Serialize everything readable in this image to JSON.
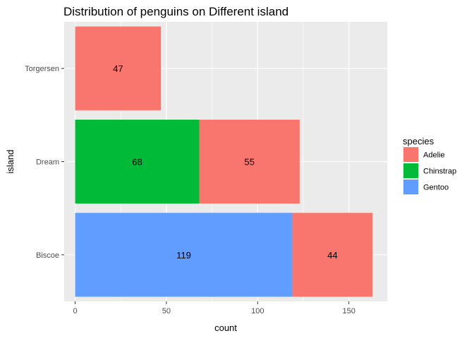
{
  "chart_data": {
    "type": "bar",
    "orientation": "horizontal",
    "stacked": true,
    "title": "Distribution of penguins on Different island",
    "xlabel": "count",
    "ylabel": "island",
    "xlim": [
      -6,
      171
    ],
    "xticks": [
      0,
      50,
      100,
      150
    ],
    "categories": [
      "Biscoe",
      "Dream",
      "Torgersen"
    ],
    "series": [
      {
        "name": "Adelie",
        "values": [
          44,
          55,
          47
        ],
        "color": "#F8766D"
      },
      {
        "name": "Chinstrap",
        "values": [
          0,
          68,
          0
        ],
        "color": "#00BA38"
      },
      {
        "name": "Gentoo",
        "values": [
          119,
          0,
          0
        ],
        "color": "#619CFF"
      }
    ],
    "stack_order_from_zero": [
      "Gentoo",
      "Chinstrap",
      "Adelie"
    ],
    "grid": true,
    "legend": {
      "title": "species",
      "position": "right"
    }
  }
}
